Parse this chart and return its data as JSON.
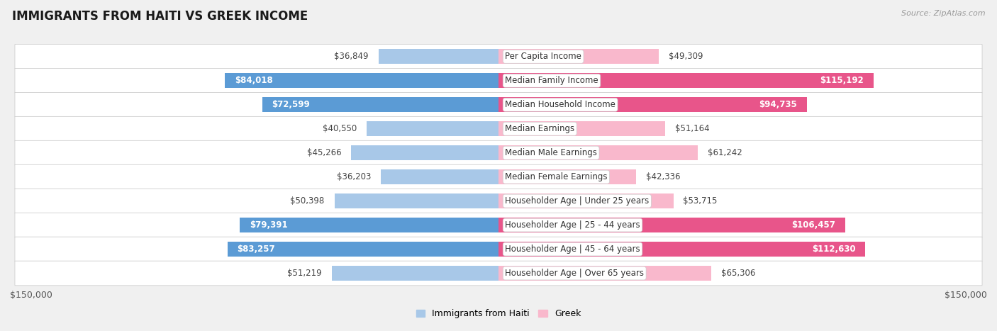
{
  "title": "IMMIGRANTS FROM HAITI VS GREEK INCOME",
  "source": "Source: ZipAtlas.com",
  "categories": [
    "Per Capita Income",
    "Median Family Income",
    "Median Household Income",
    "Median Earnings",
    "Median Male Earnings",
    "Median Female Earnings",
    "Householder Age | Under 25 years",
    "Householder Age | 25 - 44 years",
    "Householder Age | 45 - 64 years",
    "Householder Age | Over 65 years"
  ],
  "haiti_values": [
    36849,
    84018,
    72599,
    40550,
    45266,
    36203,
    50398,
    79391,
    83257,
    51219
  ],
  "greek_values": [
    49309,
    115192,
    94735,
    51164,
    61242,
    42336,
    53715,
    106457,
    112630,
    65306
  ],
  "haiti_labels": [
    "$36,849",
    "$84,018",
    "$72,599",
    "$40,550",
    "$45,266",
    "$36,203",
    "$50,398",
    "$79,391",
    "$83,257",
    "$51,219"
  ],
  "greek_labels": [
    "$49,309",
    "$115,192",
    "$94,735",
    "$51,164",
    "$61,242",
    "$42,336",
    "$53,715",
    "$106,457",
    "$112,630",
    "$65,306"
  ],
  "haiti_color_light": "#a8c8e8",
  "haiti_color_dark": "#5b9bd5",
  "greek_color_light": "#f9b8cc",
  "greek_color_dark": "#e8558a",
  "haiti_dark_threshold": 60000,
  "greek_dark_threshold": 80000,
  "xlim": 150000,
  "bar_height": 0.62,
  "background_color": "#f0f0f0",
  "row_bg_even": "#ffffff",
  "row_bg_odd": "#f7f7f7",
  "label_fontsize": 8.5,
  "title_fontsize": 12,
  "legend_haiti": "Immigrants from Haiti",
  "legend_greek": "Greek",
  "axis_label_left": "$150,000",
  "axis_label_right": "$150,000"
}
